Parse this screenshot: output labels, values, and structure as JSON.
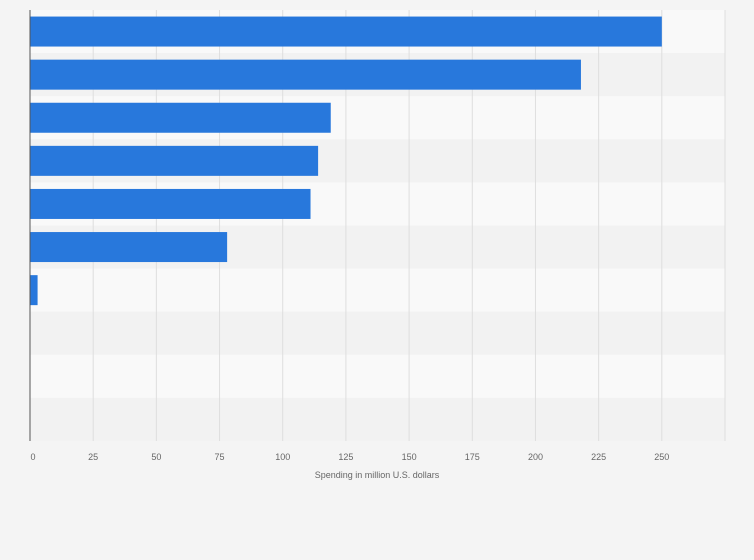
{
  "chart_data": {
    "type": "bar",
    "orientation": "horizontal",
    "title": "",
    "xlabel": "Spending in million U.S. dollars",
    "ylabel": "",
    "xlim": [
      0,
      275
    ],
    "x_ticks": [
      0,
      25,
      50,
      75,
      100,
      125,
      150,
      175,
      200,
      225,
      250
    ],
    "x_tick_labels": [
      "0",
      "25",
      "50",
      "75",
      "100",
      "125",
      "150",
      "175",
      "200",
      "225",
      "250"
    ],
    "categories": [
      "",
      "",
      "",
      "",
      "",
      "",
      "",
      "",
      "",
      ""
    ],
    "values": [
      250,
      218,
      119,
      114,
      111,
      78,
      3,
      0,
      0,
      0
    ],
    "grid": true,
    "legend": "none"
  },
  "colors": {
    "bar": "#2878dc",
    "band_light": "#f9f9f9",
    "band_dark": "#f2f2f2",
    "grid": "#dedede",
    "axis": "#555555",
    "text": "#666666"
  }
}
